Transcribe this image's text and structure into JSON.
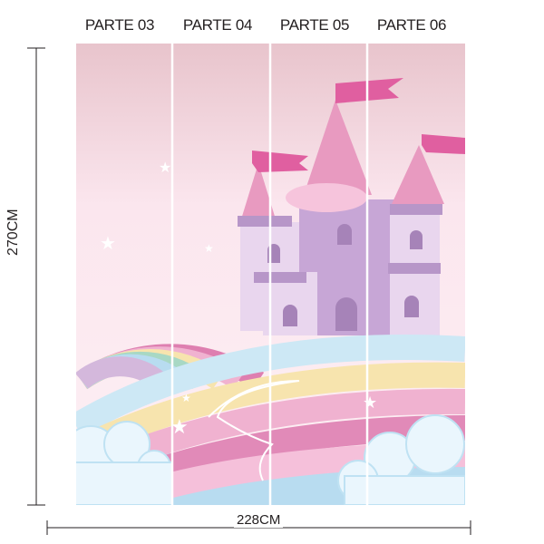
{
  "parts": [
    {
      "label": "PARTE 03"
    },
    {
      "label": "PARTE 04"
    },
    {
      "label": "PARTE 05"
    },
    {
      "label": "PARTE 06"
    }
  ],
  "dimensions": {
    "height_label": "270CM",
    "width_label": "228CM"
  },
  "colors": {
    "sky_top": "#e8c4cc",
    "sky_bottom": "#fbe6ee",
    "castle": "#c7a6d6",
    "roof": "#e89ac0",
    "flag": "#e05fa0",
    "rainbow": [
      "#de7fb0",
      "#f0b2d0",
      "#f7e4ae",
      "#a8d8c4",
      "#b8dcf0",
      "#d4b8dc"
    ]
  }
}
